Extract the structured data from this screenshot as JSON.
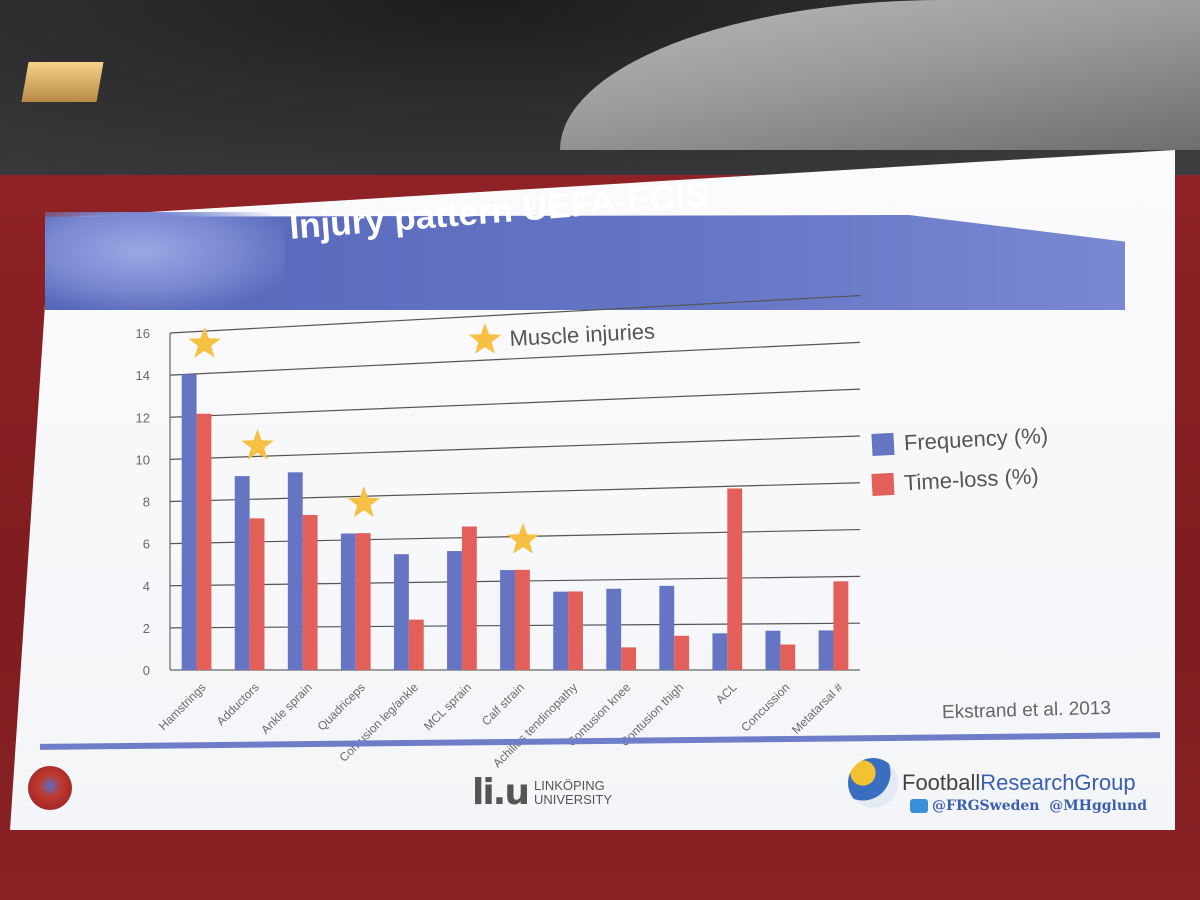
{
  "slide": {
    "title": "Injury pattern UEFA-ECIS",
    "annotation": "Muscle injuries",
    "citation": "Ekstrand et al. 2013",
    "liu_text_1": "LINKÖPING",
    "liu_text_2": "UNIVERSITY",
    "liu_mark": "li.u",
    "frg_name_1": "Football",
    "frg_name_2": "ResearchGroup",
    "twitter_1": "@FRGSweden",
    "twitter_2": "@MHgglund"
  },
  "colors": {
    "frequency": "#6674c4",
    "time_loss": "#e35f5a",
    "star": "#f5c043"
  },
  "icons": [
    "star-icon",
    "uefa-logo",
    "twitter-icon",
    "football-research-group-logo"
  ],
  "chart_data": {
    "type": "bar",
    "title": "",
    "xlabel": "",
    "ylabel": "",
    "ylim": [
      0,
      16
    ],
    "yticks": [
      0,
      2,
      4,
      6,
      8,
      10,
      12,
      14,
      16
    ],
    "categories": [
      "Hamstrings",
      "Adductors",
      "Ankle sprain",
      "Quadriceps",
      "Contusion leg/ankle",
      "MCL sprain",
      "Calf strain",
      "Achilles tendinopathy",
      "Contusion knee",
      "Contusion thigh",
      "ACL",
      "Concussion",
      "Metatarsal #"
    ],
    "series": [
      {
        "name": "Frequency (%)",
        "values": [
          14,
          9.1,
          9.2,
          6.3,
          5.3,
          5.4,
          4.5,
          3.5,
          3.6,
          3.7,
          1.6,
          1.7,
          1.7
        ]
      },
      {
        "name": "Time-loss (%)",
        "values": [
          12.1,
          7.1,
          7.2,
          6.3,
          2.3,
          6.5,
          4.5,
          3.5,
          1.0,
          1.5,
          7.9,
          1.1,
          3.8
        ]
      }
    ],
    "starred_categories": [
      "Hamstrings",
      "Adductors",
      "Quadriceps",
      "Calf strain"
    ],
    "legend": "right",
    "grid": true
  }
}
